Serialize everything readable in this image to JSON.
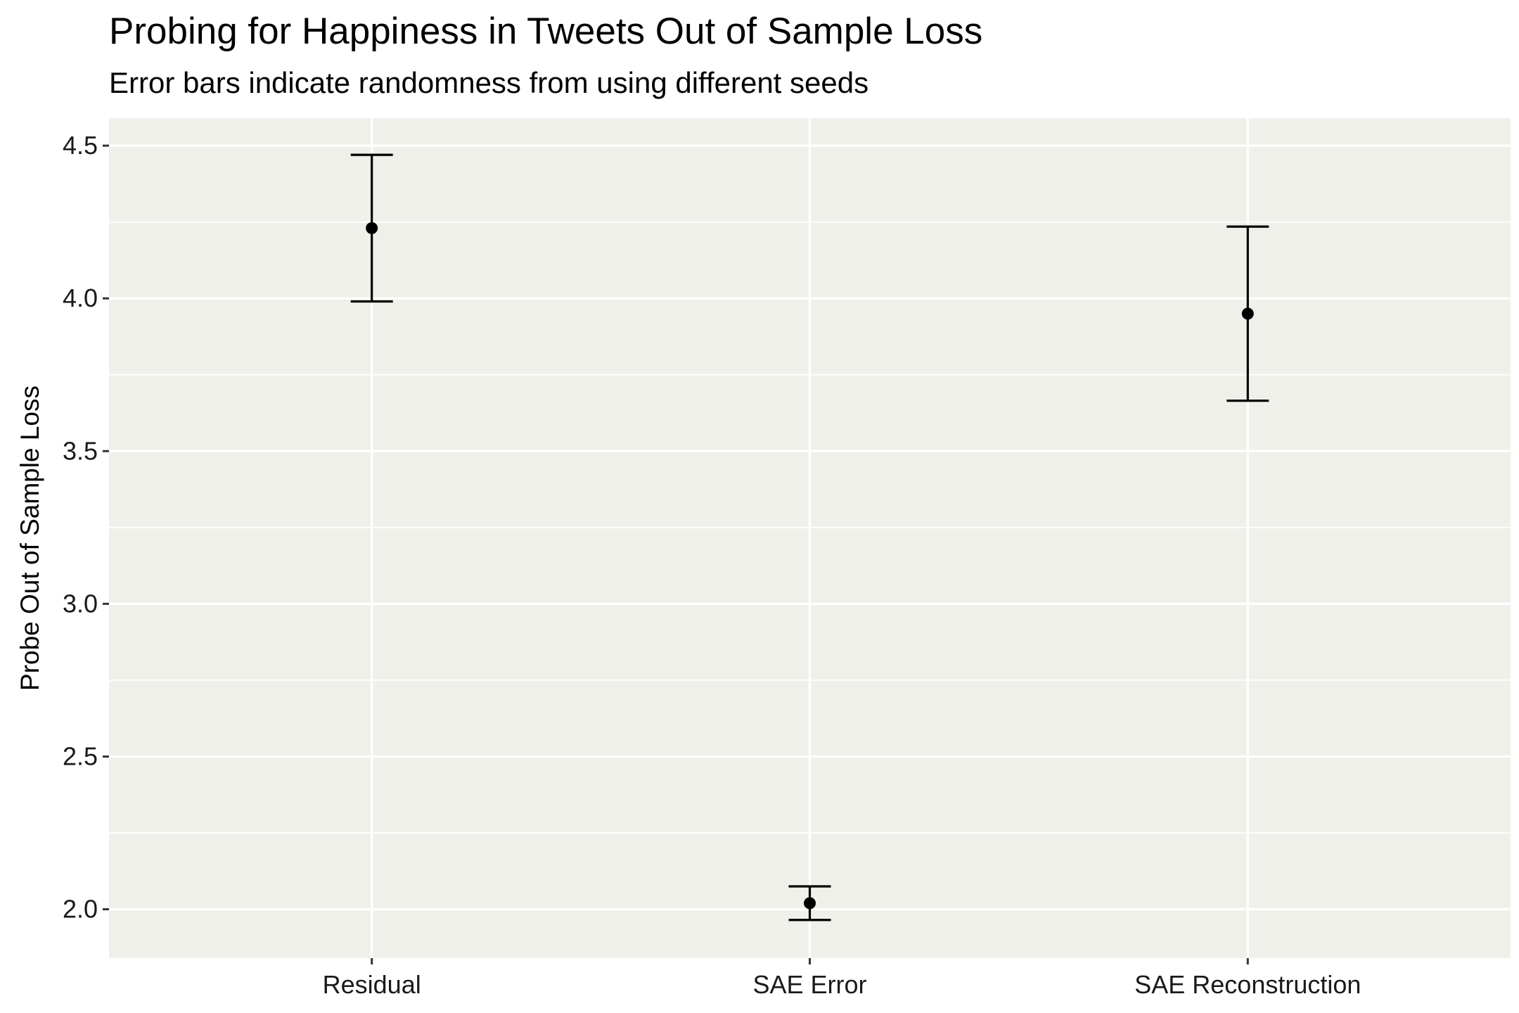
{
  "chart_data": {
    "type": "errorbar",
    "title": "Probing for Happiness in Tweets Out of Sample Loss",
    "subtitle": "Error bars indicate randomness from using different seeds",
    "xlabel": "",
    "ylabel": "Probe Out of Sample Loss",
    "categories": [
      "Residual",
      "SAE Error",
      "SAE Reconstruction"
    ],
    "values": [
      4.23,
      2.02,
      3.95
    ],
    "error_low": [
      3.99,
      1.965,
      3.665
    ],
    "error_high": [
      4.47,
      2.075,
      4.235
    ],
    "ylim": [
      1.84,
      4.59
    ],
    "y_ticks": [
      2.0,
      2.5,
      3.0,
      3.5,
      4.0,
      4.5
    ],
    "y_tick_labels": [
      "2.0",
      "2.5",
      "3.0",
      "3.5",
      "4.0",
      "4.5"
    ],
    "grid": true,
    "colors": {
      "panel_background": "#f0f0eb",
      "grid": "#ffffff",
      "marks": "#000000"
    }
  }
}
